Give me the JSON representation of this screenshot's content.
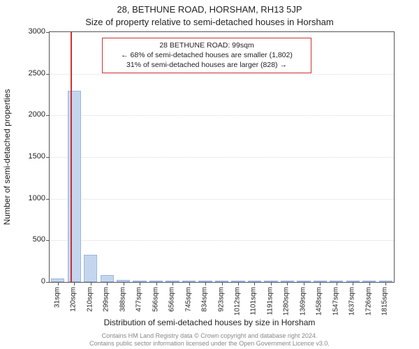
{
  "title_main": "28, BETHUNE ROAD, HORSHAM, RH13 5JP",
  "title_sub": "Size of property relative to semi-detached houses in Horsham",
  "y_axis": {
    "label": "Number of semi-detached properties",
    "min": 0,
    "max": 3000,
    "ticks": [
      0,
      500,
      1000,
      1500,
      2000,
      2500,
      3000
    ],
    "grid_color": "#d9d9d9",
    "label_fontsize": 12,
    "tick_fontsize": 11
  },
  "x_axis": {
    "label": "Distribution of semi-detached houses by size in Horsham",
    "tick_labels": [
      "31sqm",
      "120sqm",
      "210sqm",
      "299sqm",
      "388sqm",
      "477sqm",
      "566sqm",
      "656sqm",
      "745sqm",
      "834sqm",
      "923sqm",
      "1012sqm",
      "1101sqm",
      "1191sqm",
      "1280sqm",
      "1369sqm",
      "1458sqm",
      "1547sqm",
      "1637sqm",
      "1726sqm",
      "1815sqm"
    ],
    "label_fontsize": 12,
    "tick_fontsize": 10
  },
  "bars": {
    "values": [
      40,
      2300,
      330,
      80,
      25,
      15,
      10,
      5,
      5,
      3,
      3,
      3,
      3,
      3,
      3,
      3,
      3,
      3,
      3,
      3,
      3
    ],
    "color": "#c4d6ed",
    "border_color": "#9bb7dd",
    "width_frac": 0.82
  },
  "marker": {
    "value_sqm": 99,
    "range_min_sqm": 31,
    "range_max_sqm": 1860,
    "color": "#cc3333"
  },
  "info_box": {
    "lines": [
      "28 BETHUNE ROAD: 99sqm",
      "← 68% of semi-detached houses are smaller (1,802)",
      "31% of semi-detached houses are larger (828) →"
    ],
    "border_color": "#cc3333",
    "border_width": 1,
    "bg_color": "#ffffff",
    "fontsize": 10.5
  },
  "footer": {
    "line1": "Contains HM Land Registry data © Crown copyright and database right 2024.",
    "line2": "Contains public sector information licensed under the Open Government Licence v3.0.",
    "color": "#888888",
    "fontsize": 9
  },
  "plot": {
    "background": "#ffffff",
    "border_color": "#555555"
  }
}
